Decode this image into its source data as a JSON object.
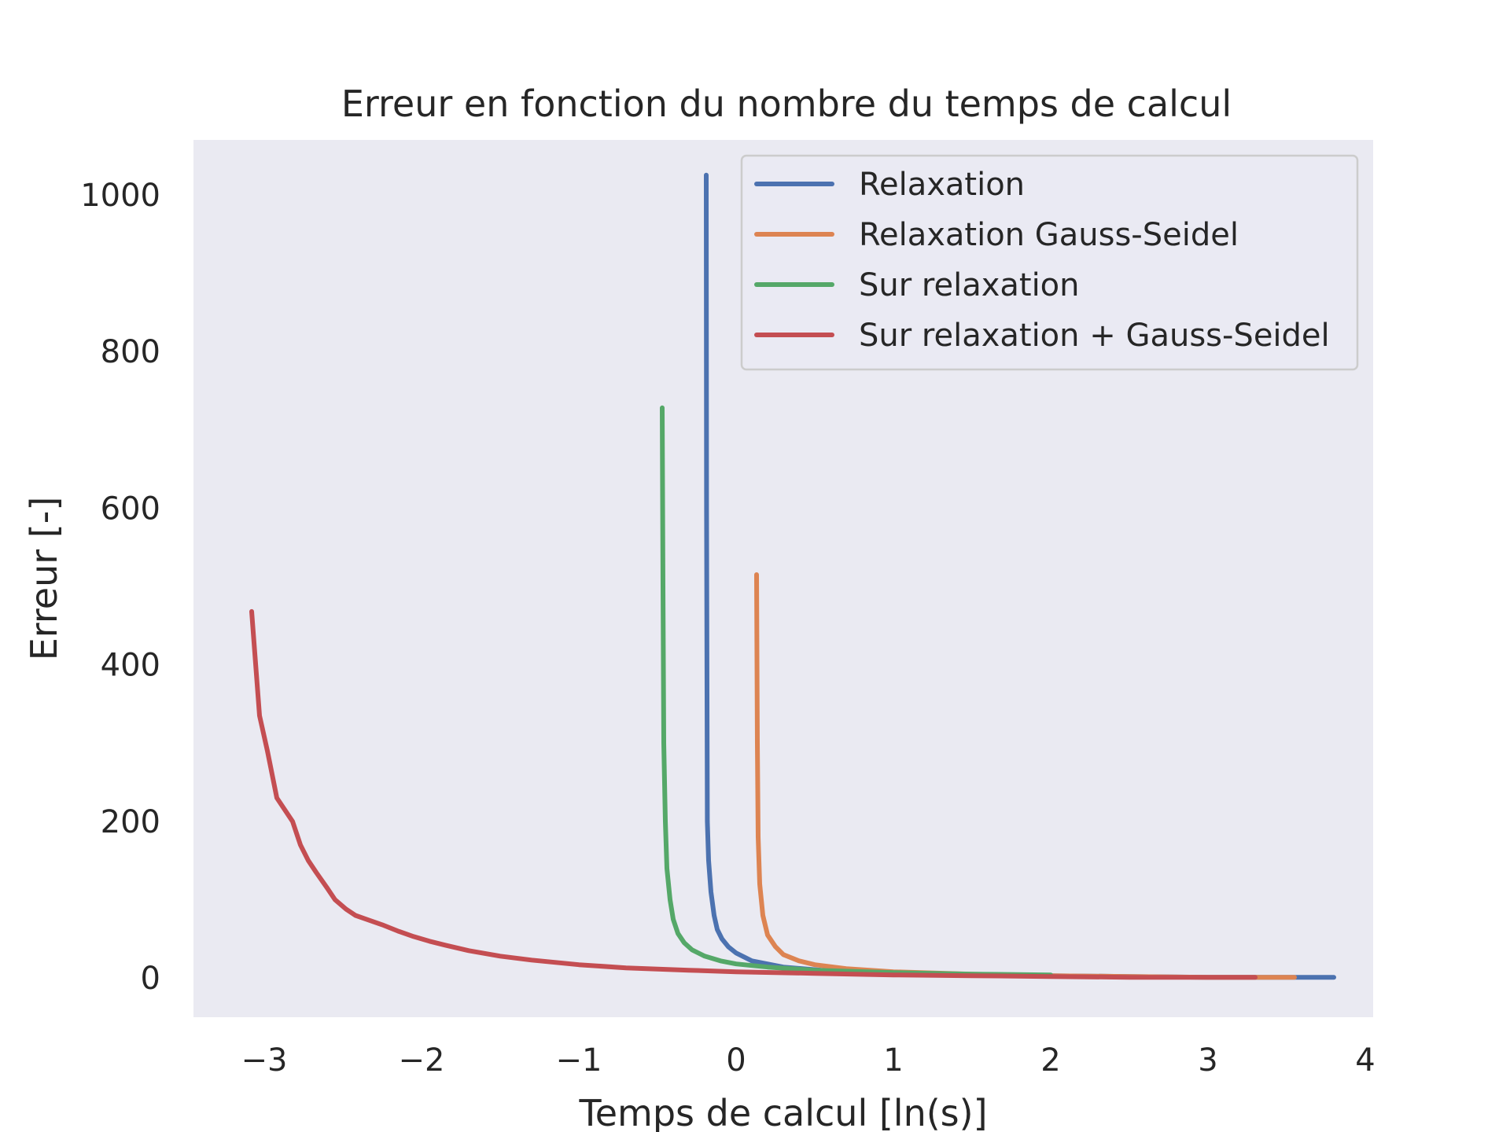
{
  "chart_data": {
    "type": "line",
    "title": "Erreur en fonction du nombre du temps de calcul",
    "xlabel": "Temps de calcul [ln(s)]",
    "ylabel": "Erreur [-]",
    "xlim": [
      -3.45,
      4.05
    ],
    "ylim": [
      -50,
      1070
    ],
    "xticks": [
      -3,
      -2,
      -1,
      0,
      1,
      2,
      3,
      4
    ],
    "xtick_labels": [
      "−3",
      "−2",
      "−1",
      "0",
      "1",
      "2",
      "3",
      "4"
    ],
    "yticks": [
      0,
      200,
      400,
      600,
      800,
      1000
    ],
    "ytick_labels": [
      "0",
      "200",
      "400",
      "600",
      "800",
      "1000"
    ],
    "grid": false,
    "background": "#EAEAF2",
    "legend_position": "top-right",
    "series": [
      {
        "name": "Relaxation",
        "color": "#4C72B0",
        "x": [
          -0.19,
          -0.188,
          -0.183,
          -0.175,
          -0.16,
          -0.14,
          -0.12,
          -0.09,
          -0.05,
          0.0,
          0.1,
          0.3,
          0.6,
          1.0,
          1.5,
          2.0,
          2.5,
          3.0,
          3.5,
          3.8
        ],
        "y": [
          1025,
          600,
          200,
          150,
          110,
          80,
          62,
          50,
          40,
          32,
          22,
          14,
          9,
          6,
          4,
          3,
          2,
          1,
          1,
          1
        ]
      },
      {
        "name": "Relaxation Gauss-Seidel",
        "color": "#DD8452",
        "x": [
          0.13,
          0.135,
          0.14,
          0.15,
          0.17,
          0.2,
          0.25,
          0.3,
          0.4,
          0.5,
          0.7,
          1.0,
          1.5,
          2.0,
          2.5,
          3.0,
          3.35,
          3.55
        ],
        "y": [
          515,
          300,
          180,
          120,
          80,
          55,
          40,
          30,
          22,
          17,
          12,
          8,
          5,
          3,
          2,
          1,
          1,
          1
        ]
      },
      {
        "name": "Sur relaxation",
        "color": "#55A868",
        "x": [
          -0.47,
          -0.465,
          -0.46,
          -0.45,
          -0.44,
          -0.42,
          -0.4,
          -0.37,
          -0.33,
          -0.28,
          -0.2,
          -0.1,
          0.0,
          0.2,
          0.5,
          1.0,
          1.5,
          2.0
        ],
        "y": [
          728,
          500,
          300,
          200,
          140,
          100,
          75,
          57,
          45,
          36,
          28,
          22,
          18,
          14,
          10,
          7,
          5,
          4
        ]
      },
      {
        "name": "Sur relaxation + Gauss-Seidel",
        "color": "#C44E52",
        "x": [
          -3.08,
          -3.03,
          -2.98,
          -2.92,
          -2.82,
          -2.77,
          -2.72,
          -2.67,
          -2.6,
          -2.55,
          -2.48,
          -2.42,
          -2.35,
          -2.25,
          -2.15,
          -2.05,
          -1.95,
          -1.85,
          -1.7,
          -1.5,
          -1.3,
          -1.0,
          -0.7,
          -0.3,
          0.0,
          0.5,
          1.0,
          1.5,
          2.0,
          2.5,
          3.0,
          3.3
        ],
        "y": [
          468,
          335,
          290,
          230,
          200,
          170,
          150,
          135,
          115,
          100,
          88,
          80,
          75,
          68,
          60,
          53,
          47,
          42,
          35,
          28,
          23,
          17,
          13,
          10,
          8,
          6,
          4,
          3,
          2,
          1,
          1,
          1
        ]
      }
    ]
  }
}
